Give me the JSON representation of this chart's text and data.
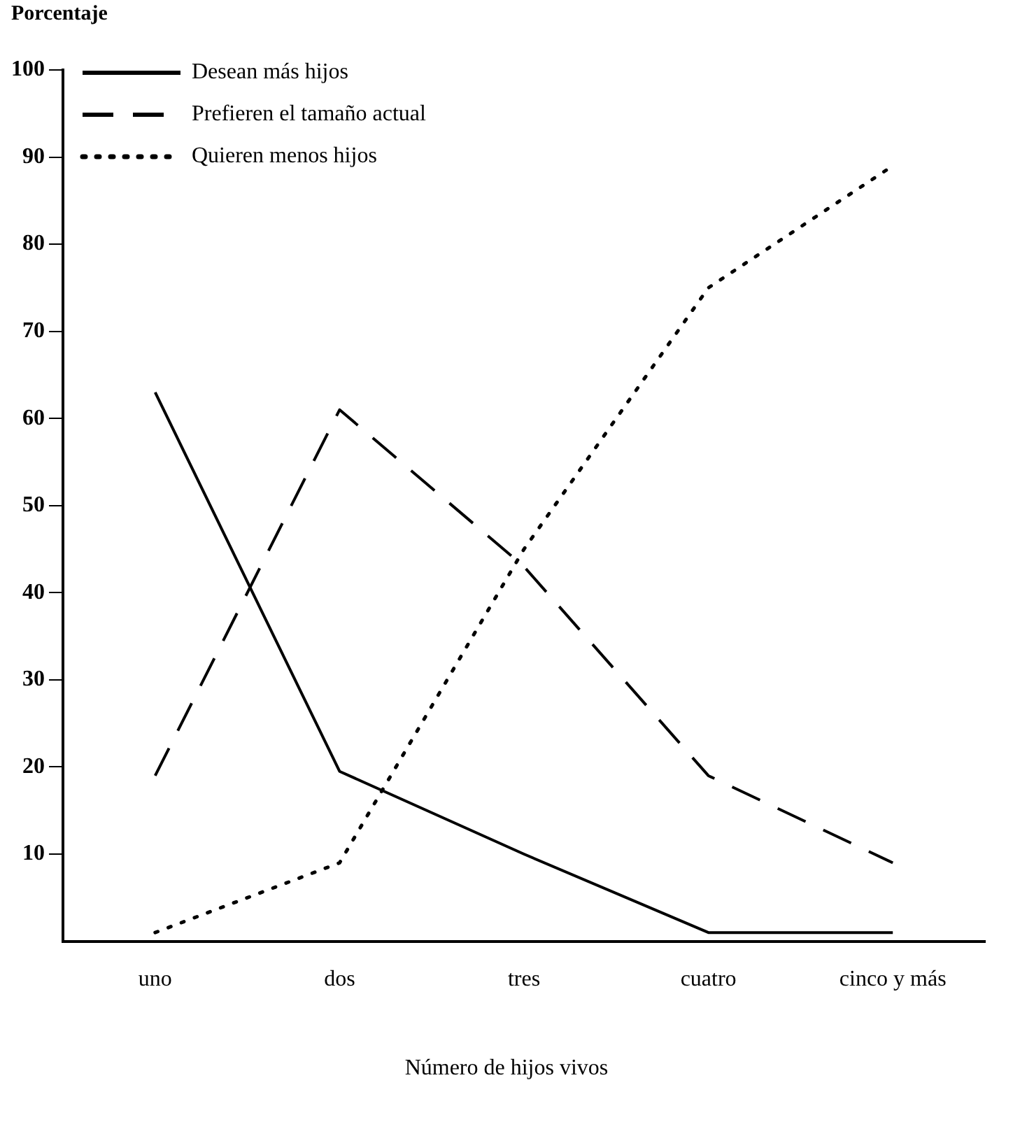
{
  "chart_data": {
    "type": "line",
    "ylabel": "Porcentaje",
    "xlabel": "Número de hijos vivos",
    "categories": [
      "uno",
      "dos",
      "tres",
      "cuatro",
      "cinco y más"
    ],
    "series": [
      {
        "name": "Desean más hijos",
        "color": "#000000",
        "line_style": "solid",
        "values": [
          63,
          19.5,
          10,
          1,
          1
        ]
      },
      {
        "name": "Prefieren el tamaño actual",
        "color": "#000000",
        "line_style": "dashed",
        "values": [
          19,
          61,
          43,
          19,
          9
        ]
      },
      {
        "name": "Quieren menos hijos",
        "color": "#000000",
        "line_style": "dotted",
        "values": [
          1,
          9,
          45,
          75,
          89
        ]
      }
    ],
    "ylim": [
      0,
      100
    ],
    "yticks": [
      10,
      20,
      30,
      40,
      50,
      60,
      70,
      80,
      90,
      100
    ],
    "grid": false,
    "legend": "top left",
    "marker": "none"
  }
}
